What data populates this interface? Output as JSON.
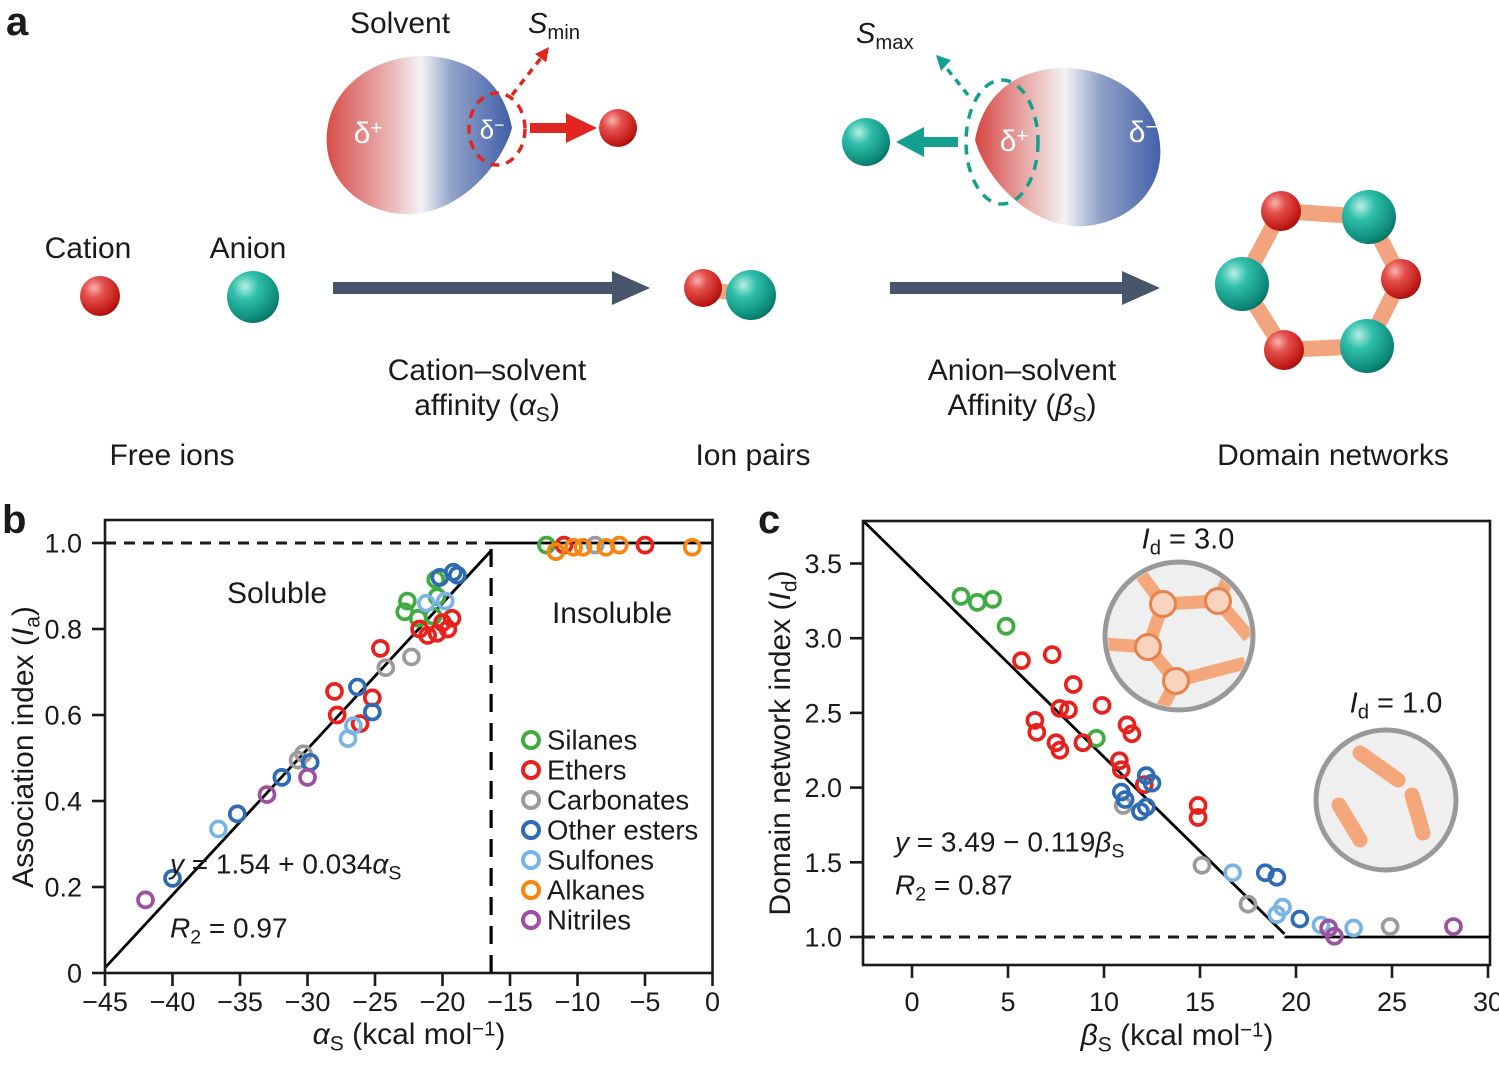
{
  "figure": {
    "background": "#ffffff"
  },
  "colors": {
    "silanes": "#3fab40",
    "ethers": "#e8211d",
    "carbonates": "#9b9b9b",
    "other_esters": "#2d6cb5",
    "sulfones": "#7ab4e5",
    "alkanes": "#f6860f",
    "nitriles": "#9c50a0",
    "axis": "#1a1a1a",
    "teal": "#14a08f",
    "red_accent": "#e02620",
    "arrow_slate": "#47566b",
    "bond_salmon": "#f2a47e",
    "inset_bg": "#efefef",
    "inset_ring": "#999999",
    "inset_stick": "#f5a77c",
    "inset_node_fill": "#f8d3bd",
    "inset_node_stroke": "#e8814a"
  },
  "panel_a": {
    "label": "a",
    "solvent": "Solvent",
    "s_min": {
      "base": "S",
      "sub": "min"
    },
    "s_max": {
      "base": "S",
      "sub": "max"
    },
    "delta_plus": {
      "base": "δ",
      "sup": "+"
    },
    "delta_minus": {
      "base": "δ",
      "sup": "−"
    },
    "cation": "Cation",
    "anion": "Anion",
    "step1": {
      "line1": "Cation–solvent",
      "pre": "affinity (",
      "sym": "α",
      "sub": "S",
      "post": ")"
    },
    "step2": {
      "line1": "Anion–solvent",
      "pre": "Affinity (",
      "sym": "β",
      "sub": "S",
      "post": ")"
    },
    "stage_free": "Free ions",
    "stage_pairs": "Ion pairs",
    "stage_domains": "Domain networks"
  },
  "panel_b": {
    "label": "b",
    "ylabel": {
      "pre": "Association index (",
      "sym": "I",
      "sub": "a",
      "post": ")"
    },
    "xlabel": {
      "sym": "α",
      "sub": "S",
      "mid": " (kcal mol",
      "sup": "−1",
      "post": ")"
    },
    "region_left": "Soluble",
    "region_right": "Insoluble",
    "equation": {
      "y": "y",
      "body": " = 1.54 + 0.034",
      "sym": "α",
      "sub": "S"
    },
    "r2": {
      "base": "R",
      "sub": "2",
      "rest": " = 0.97"
    }
  },
  "panel_c": {
    "label": "c",
    "ylabel": {
      "pre": "Domain network index (",
      "sym": "I",
      "sub": "d",
      "post": ")"
    },
    "xlabel": {
      "sym": "β",
      "sub": "S",
      "mid": " (kcal mol",
      "sup": "−1",
      "post": ")"
    },
    "equation": {
      "y": "y",
      "body": " = 3.49 − 0.119",
      "sym": "β",
      "sub": "S"
    },
    "r2": {
      "base": "R",
      "sub": "2",
      "rest": " = 0.87"
    },
    "inset_network": {
      "base": "I",
      "sub": "d",
      "rest": " = 3.0"
    },
    "inset_isolated": {
      "base": "I",
      "sub": "d",
      "rest": " = 1.0"
    }
  },
  "chart_data": [
    {
      "panel": "b",
      "type": "scatter",
      "xlabel": "α_S (kcal mol−1)",
      "ylabel": "Association index (I_a)",
      "xlim": [
        -45,
        0
      ],
      "ylim": [
        0,
        1.053
      ],
      "xticks": [
        -45,
        -40,
        -35,
        -30,
        -25,
        -20,
        -15,
        -10,
        -5,
        0
      ],
      "yticks": [
        0,
        0.2,
        0.4,
        0.6,
        0.8,
        1.0
      ],
      "grid": false,
      "annotations": [
        "Soluble",
        "Insoluble"
      ],
      "threshold_x": -16.4,
      "dashed_hline": {
        "y": 1.0,
        "x1": -45,
        "x2": -16.4
      },
      "fit": {
        "equation": "y = 1.54 + 0.034x",
        "slope": 0.034,
        "intercept": 1.54,
        "r2": 0.97,
        "line": [
          [
            -45,
            0.012
          ],
          [
            -16.4,
            0.982
          ]
        ],
        "plateau": [
          [
            -16.4,
            1.0
          ],
          [
            0,
            1.0
          ]
        ]
      },
      "legend_position": "lower right",
      "series": [
        {
          "name": "Silanes",
          "color": "#3fab40",
          "points": [
            [
              -22.8,
              0.84
            ],
            [
              -22.6,
              0.865
            ],
            [
              -21.8,
              0.825
            ],
            [
              -20.7,
              0.83
            ],
            [
              -20.4,
              0.875
            ],
            [
              -20.5,
              0.915
            ],
            [
              -12.3,
              0.995
            ]
          ]
        },
        {
          "name": "Ethers",
          "color": "#e8211d",
          "points": [
            [
              -28.0,
              0.655
            ],
            [
              -27.8,
              0.6
            ],
            [
              -26.1,
              0.58
            ],
            [
              -25.2,
              0.64
            ],
            [
              -24.6,
              0.755
            ],
            [
              -21.7,
              0.8
            ],
            [
              -21.1,
              0.785
            ],
            [
              -20.4,
              0.79
            ],
            [
              -20.0,
              0.815
            ],
            [
              -19.6,
              0.8
            ],
            [
              -19.3,
              0.825
            ],
            [
              -11.0,
              0.995
            ],
            [
              -5.0,
              0.995
            ]
          ]
        },
        {
          "name": "Carbonates",
          "color": "#9b9b9b",
          "points": [
            [
              -30.7,
              0.495
            ],
            [
              -30.3,
              0.51
            ],
            [
              -24.2,
              0.71
            ],
            [
              -22.3,
              0.735
            ],
            [
              -8.7,
              0.995
            ]
          ]
        },
        {
          "name": "Other esters",
          "color": "#2d6cb5",
          "points": [
            [
              -40.0,
              0.22
            ],
            [
              -35.2,
              0.37
            ],
            [
              -31.9,
              0.455
            ],
            [
              -29.8,
              0.49
            ],
            [
              -26.3,
              0.665
            ],
            [
              -25.2,
              0.607
            ],
            [
              -20.2,
              0.92
            ],
            [
              -19.2,
              0.932
            ],
            [
              -18.9,
              0.925
            ]
          ]
        },
        {
          "name": "Sulfones",
          "color": "#7ab4e5",
          "points": [
            [
              -36.6,
              0.335
            ],
            [
              -27.0,
              0.545
            ],
            [
              -26.6,
              0.575
            ],
            [
              -21.2,
              0.86
            ],
            [
              -19.8,
              0.865
            ]
          ]
        },
        {
          "name": "Alkanes",
          "color": "#f6860f",
          "points": [
            [
              -11.6,
              0.98
            ],
            [
              -10.3,
              0.99
            ],
            [
              -9.6,
              0.99
            ],
            [
              -7.9,
              0.99
            ],
            [
              -6.9,
              0.995
            ],
            [
              -1.5,
              0.99
            ]
          ]
        },
        {
          "name": "Nitriles",
          "color": "#9c50a0",
          "points": [
            [
              -42.0,
              0.17
            ],
            [
              -33.0,
              0.415
            ],
            [
              -30.0,
              0.455
            ]
          ]
        }
      ]
    },
    {
      "panel": "c",
      "type": "scatter",
      "xlabel": "β_S (kcal mol−1)",
      "ylabel": "Domain network index (I_d)",
      "xlim": [
        -2.5,
        30.1
      ],
      "ylim": [
        0.81,
        3.78
      ],
      "xticks": [
        0,
        5,
        10,
        15,
        20,
        25,
        30
      ],
      "yticks": [
        1.0,
        1.5,
        2.0,
        2.5,
        3.0,
        3.5
      ],
      "grid": false,
      "annotations": [
        "I_d = 3.0 (network)",
        "I_d = 1.0 (isolated)"
      ],
      "dashed_hline": {
        "y": 1.0,
        "x1": -2.5,
        "x2": 19.0
      },
      "fit": {
        "equation": "y = 3.49 − 0.119x",
        "slope": -0.119,
        "intercept": 3.49,
        "r2": 0.87,
        "line": [
          [
            -2.5,
            3.78
          ],
          [
            19.4,
            1.02
          ]
        ],
        "plateau": [
          [
            19.4,
            1.0
          ],
          [
            30.1,
            1.0
          ]
        ]
      },
      "series": [
        {
          "name": "Silanes",
          "color": "#3fab40",
          "points": [
            [
              2.55,
              3.28
            ],
            [
              3.4,
              3.24
            ],
            [
              4.2,
              3.26
            ],
            [
              4.9,
              3.08
            ],
            [
              9.6,
              2.33
            ]
          ]
        },
        {
          "name": "Ethers",
          "color": "#e8211d",
          "points": [
            [
              5.7,
              2.85
            ],
            [
              7.3,
              2.89
            ],
            [
              8.4,
              2.69
            ],
            [
              7.7,
              2.53
            ],
            [
              8.15,
              2.52
            ],
            [
              6.4,
              2.45
            ],
            [
              6.5,
              2.37
            ],
            [
              7.5,
              2.3
            ],
            [
              7.7,
              2.25
            ],
            [
              8.9,
              2.3
            ],
            [
              9.9,
              2.55
            ],
            [
              11.2,
              2.42
            ],
            [
              11.45,
              2.36
            ],
            [
              10.8,
              2.18
            ],
            [
              10.9,
              2.12
            ],
            [
              12.1,
              2.02
            ],
            [
              14.9,
              1.88
            ],
            [
              14.9,
              1.8
            ]
          ]
        },
        {
          "name": "Carbonates",
          "color": "#9b9b9b",
          "points": [
            [
              11.0,
              1.88
            ],
            [
              15.1,
              1.48
            ],
            [
              17.5,
              1.22
            ],
            [
              24.9,
              1.07
            ]
          ]
        },
        {
          "name": "Other esters",
          "color": "#2d6cb5",
          "points": [
            [
              12.2,
              2.08
            ],
            [
              12.5,
              2.03
            ],
            [
              10.9,
              1.97
            ],
            [
              11.1,
              1.92
            ],
            [
              11.9,
              1.84
            ],
            [
              12.2,
              1.87
            ],
            [
              18.4,
              1.43
            ],
            [
              19.0,
              1.4
            ],
            [
              20.2,
              1.12
            ]
          ]
        },
        {
          "name": "Sulfones",
          "color": "#7ab4e5",
          "points": [
            [
              16.7,
              1.43
            ],
            [
              19.3,
              1.2
            ],
            [
              19.0,
              1.15
            ],
            [
              21.3,
              1.08
            ],
            [
              23.0,
              1.06
            ]
          ]
        },
        {
          "name": "Nitriles",
          "color": "#9c50a0",
          "points": [
            [
              21.7,
              1.06
            ],
            [
              22.0,
              1.005
            ],
            [
              28.2,
              1.07
            ]
          ]
        }
      ]
    }
  ]
}
